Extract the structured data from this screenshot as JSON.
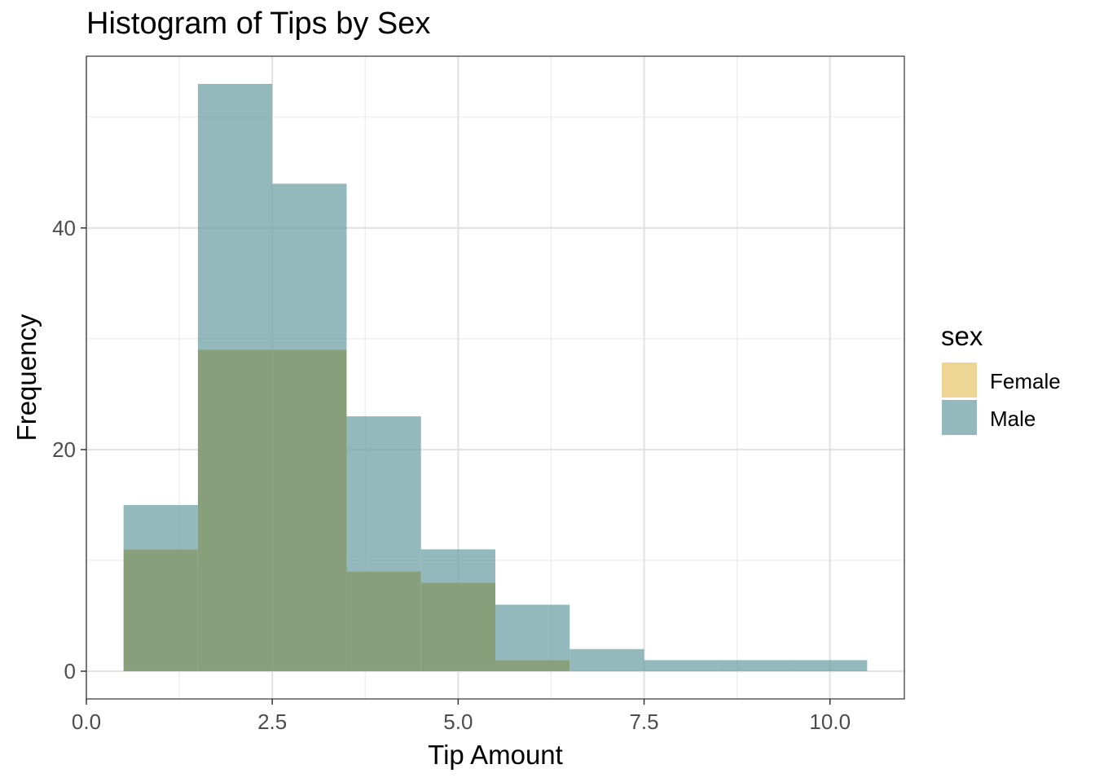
{
  "chart_data": {
    "type": "bar",
    "subtype": "overlaid-histogram",
    "title": "Histogram of Tips by Sex",
    "xlabel": "Tip Amount",
    "ylabel": "Frequency",
    "xlim": [
      0,
      11
    ],
    "ylim": [
      -2.5,
      55.5
    ],
    "x_ticks": [
      0.0,
      2.5,
      5.0,
      7.5,
      10.0
    ],
    "x_tick_labels": [
      "0.0",
      "2.5",
      "5.0",
      "7.5",
      "10.0"
    ],
    "y_ticks": [
      0,
      20,
      40
    ],
    "y_tick_labels": [
      "0",
      "20",
      "40"
    ],
    "grid": true,
    "legend": {
      "title": "sex",
      "position": "right"
    },
    "bin_width": 1,
    "bin_starts": [
      0.5,
      1.5,
      2.5,
      3.5,
      4.5,
      5.5,
      6.5,
      7.5,
      8.5,
      9.5
    ],
    "series": [
      {
        "name": "Female",
        "color": "#E6C66B",
        "values": [
          11,
          29,
          29,
          9,
          8,
          1,
          0,
          0,
          0,
          0
        ]
      },
      {
        "name": "Male",
        "color": "#6A9EA3",
        "values": [
          15,
          53,
          44,
          23,
          11,
          6,
          2,
          1,
          1,
          1
        ]
      }
    ],
    "overlap_color": "#879F7B"
  }
}
